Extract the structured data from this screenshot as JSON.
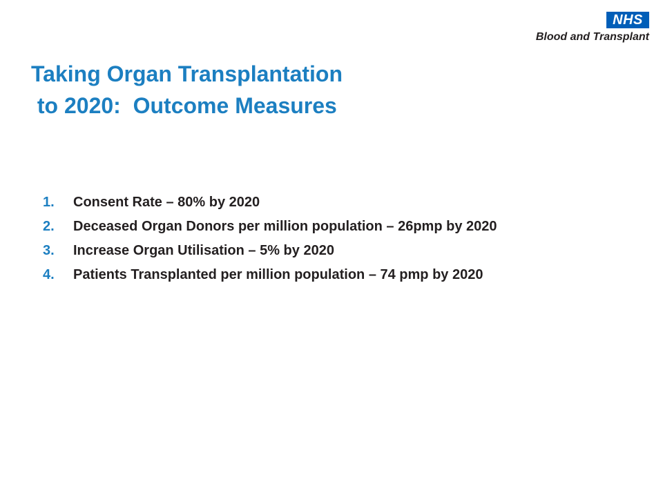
{
  "logo": {
    "nhs": "NHS",
    "org_name": "Blood and Transplant"
  },
  "title": {
    "line1": "Taking Organ Transplantation",
    "line2": " to 2020:  Outcome Measures"
  },
  "outcomes": [
    {
      "number": "1.",
      "text": "Consent Rate – 80% by 2020"
    },
    {
      "number": "2.",
      "text": "Deceased Organ Donors per million population – 26pmp by 2020"
    },
    {
      "number": "3.",
      "text": "Increase Organ Utilisation – 5% by 2020"
    },
    {
      "number": "4.",
      "text": "Patients Transplanted per million population – 74 pmp by 2020"
    }
  ],
  "colors": {
    "title": "#1c7fc1",
    "nhs_blue": "#005eb8",
    "body_text": "#231f20"
  }
}
